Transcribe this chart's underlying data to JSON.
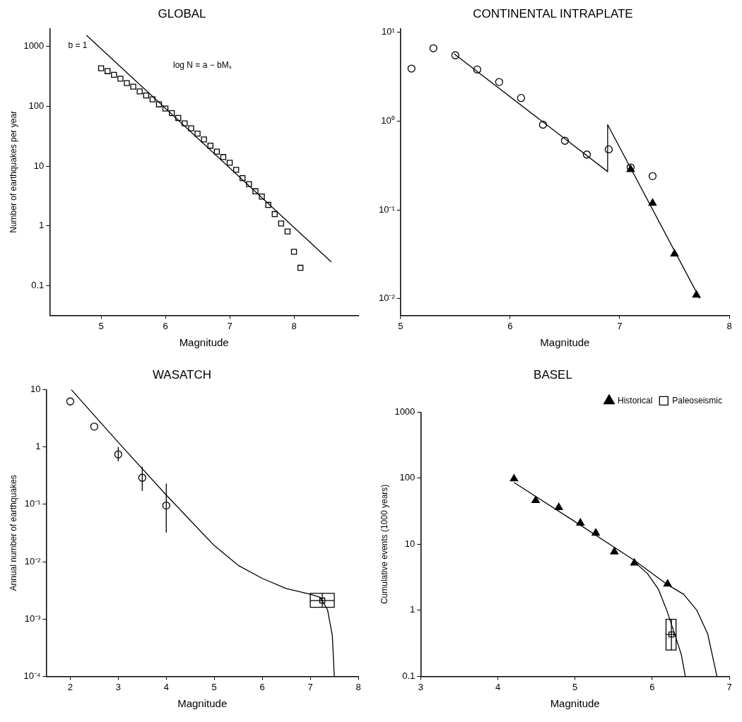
{
  "chart_data": [
    {
      "type": "scatter",
      "title": "GLOBAL",
      "xlabel": "Magnitude",
      "ylabel": "Number of earthquakes per year",
      "log": "y",
      "xlim": [
        4.2,
        9
      ],
      "ylim": [
        0.032,
        2000
      ],
      "xticks": [
        5,
        6,
        7,
        8
      ],
      "yticks": [
        1000,
        100,
        10,
        1,
        0.1
      ],
      "series": [
        {
          "marker": "square",
          "color": "#000000",
          "x": [
            5.0,
            5.1,
            5.2,
            5.3,
            5.4,
            5.5,
            5.6,
            5.7,
            5.8,
            5.9,
            6.0,
            6.1,
            6.2,
            6.3,
            6.4,
            6.5,
            6.6,
            6.7,
            6.8,
            6.9,
            7.0,
            7.1,
            7.2,
            7.3,
            7.4,
            7.5,
            7.6,
            7.7,
            7.8,
            7.9,
            8.0,
            8.1
          ],
          "values": [
            433,
            388,
            337,
            290,
            245,
            214,
            178,
            152,
            131,
            108,
            92,
            77,
            64,
            52,
            43,
            35,
            28,
            22,
            17.5,
            14.2,
            11.4,
            8.7,
            6.3,
            5.0,
            3.8,
            3.1,
            2.25,
            1.58,
            1.1,
            0.81,
            0.37,
            0.2
          ]
        },
        {
          "type": "line",
          "color": "#000000",
          "x": [
            4.77,
            8.58
          ],
          "values": [
            1550,
            0.25
          ]
        }
      ],
      "annotations": [
        "b = 1",
        "log N = a − bMₛ"
      ]
    },
    {
      "type": "scatter",
      "title": "CONTINENTAL INTRAPLATE",
      "xlabel": "Magnitude",
      "log": "y",
      "xlim": [
        5,
        8
      ],
      "ylim": [
        0.0065,
        11
      ],
      "xticks": [
        5,
        6,
        7,
        8
      ],
      "yticks": [
        {
          "value": 10,
          "label": "10¹"
        },
        {
          "value": 1,
          "label": "10⁰"
        },
        {
          "value": 0.1,
          "label": "10⁻¹"
        },
        {
          "value": 0.01,
          "label": "10⁻²"
        }
      ],
      "series": [
        {
          "marker": "circle",
          "color": "#000000",
          "x": [
            5.1,
            5.3,
            5.5,
            5.7,
            5.9,
            6.1,
            6.3,
            6.5,
            6.7,
            6.9,
            7.1,
            7.3
          ],
          "values": [
            3.9,
            6.6,
            5.5,
            3.8,
            2.75,
            1.82,
            0.91,
            0.6,
            0.42,
            0.48,
            0.3,
            0.24
          ]
        },
        {
          "marker": "triangle",
          "color": "#000000",
          "x": [
            7.1,
            7.3,
            7.5,
            7.7
          ],
          "values": [
            0.286,
            0.119,
            0.032,
            0.011
          ]
        },
        {
          "type": "line",
          "color": "#000000",
          "x": [
            5.49,
            6.89,
            6.89,
            7.73
          ],
          "values": [
            5.7,
            0.27,
            0.91,
            0.0101
          ]
        }
      ]
    },
    {
      "type": "scatter",
      "title": "WASATCH",
      "xlabel": "Magnitude",
      "ylabel": "Annual number of earthquakes",
      "log": "y",
      "xlim": [
        1.5,
        8
      ],
      "ylim": [
        0.0001,
        10
      ],
      "xticks": [
        2,
        3,
        4,
        5,
        6,
        7,
        8
      ],
      "yticks": [
        10,
        1,
        {
          "value": 0.1,
          "label": "10⁻¹"
        },
        {
          "value": 0.01,
          "label": "10⁻²"
        },
        {
          "value": 0.001,
          "label": "10⁻³"
        },
        {
          "value": 0.0001,
          "label": "10⁻⁴"
        }
      ],
      "series": [
        {
          "marker": "circle",
          "color": "#000000",
          "x": [
            2,
            2.5,
            3,
            3.5,
            4
          ],
          "values": [
            6.2,
            2.26,
            0.74,
            0.29,
            0.095
          ],
          "errors": [
            null,
            null,
            [
              0.56,
              1
            ],
            [
              0.17,
              0.45
            ],
            [
              0.032,
              0.23
            ]
          ]
        },
        {
          "marker": "square",
          "color": "#000000",
          "x": [
            7.25
          ],
          "values": [
            0.0021
          ],
          "xerrors": [
            [
              7.0,
              7.5
            ]
          ],
          "errors": [
            [
              0.0016,
              0.0028
            ]
          ]
        },
        {
          "type": "line",
          "color": "#000000",
          "x": [
            2.02,
            3,
            4,
            5,
            5.5,
            6,
            6.5,
            7,
            7.2,
            7.36,
            7.46,
            7.5
          ],
          "values": [
            10,
            1.2,
            0.145,
            0.019,
            0.0086,
            0.0051,
            0.0034,
            0.0027,
            0.0024,
            0.00145,
            0.00051,
            0.0001
          ]
        }
      ]
    },
    {
      "type": "scatter",
      "title": "BASEL",
      "xlabel": "Magnitude",
      "ylabel": "Cumulative events (1000 years)",
      "log": "y",
      "legend": "top right",
      "xlim": [
        3,
        7
      ],
      "ylim": [
        0.1,
        1000
      ],
      "xticks": [
        3,
        4,
        5,
        6,
        7
      ],
      "yticks": [
        1000,
        100,
        10,
        1,
        0.1
      ],
      "series": [
        {
          "name": "Historical",
          "marker": "triangle",
          "color": "#000000",
          "x": [
            4.21,
            4.49,
            4.79,
            5.07,
            5.27,
            5.51,
            5.77,
            6.2
          ],
          "values": [
            98,
            46,
            36,
            21,
            14.8,
            7.7,
            5.2,
            2.5
          ]
        },
        {
          "name": "Paleoseismic",
          "marker": "square",
          "color": "#000000",
          "x": [
            6.25
          ],
          "values": [
            0.43
          ],
          "xerrors": [
            [
              6.18,
              6.31
            ]
          ],
          "errors": [
            [
              0.25,
              0.73
            ]
          ]
        },
        {
          "type": "line",
          "color": "#000000",
          "x": [
            4.21,
            5,
            5.77,
            6.2,
            6.41,
            6.58,
            6.72,
            6.84
          ],
          "values": [
            86,
            22,
            5.7,
            2.44,
            1.74,
            1.0,
            0.44,
            0.1
          ]
        },
        {
          "type": "line",
          "color": "#000000",
          "x": [
            5.77,
            5.94,
            6.08,
            6.19,
            6.3,
            6.38,
            6.43
          ],
          "values": [
            5.4,
            3.6,
            2.1,
            1.0,
            0.41,
            0.21,
            0.1
          ]
        }
      ]
    }
  ]
}
